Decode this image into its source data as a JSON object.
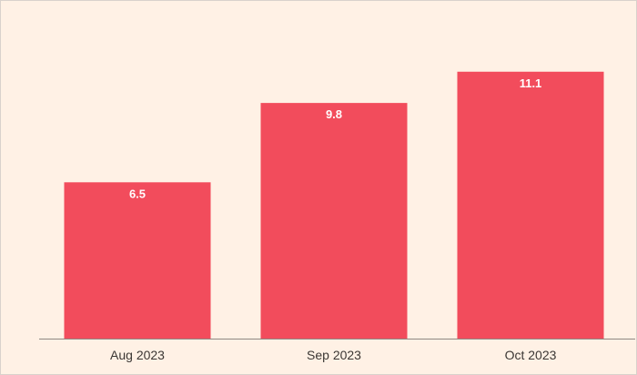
{
  "chart_data": {
    "type": "bar",
    "categories": [
      "Aug 2023",
      "Sep 2023",
      "Oct 2023"
    ],
    "values": [
      6.5,
      9.8,
      11.1
    ],
    "data_labels": [
      "6.5",
      "9.8",
      "11.1"
    ],
    "title": "",
    "xlabel": "",
    "ylabel": "",
    "ylim": [
      0,
      12
    ],
    "grid": false,
    "legend": "none"
  },
  "colors": {
    "background": "#fff1e5",
    "bar": "#f24c5c",
    "bar_label": "#ffffff",
    "axis": "#8f8882",
    "tick_label": "#3b3734"
  }
}
